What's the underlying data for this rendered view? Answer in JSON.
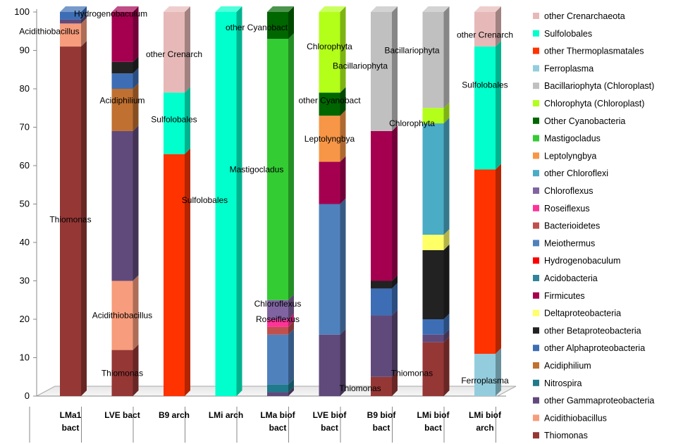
{
  "chart_data": {
    "type": "bar",
    "stacked": true,
    "ylim": [
      0,
      100
    ],
    "yticks": [
      "0",
      "10",
      "20",
      "30",
      "40",
      "50",
      "60",
      "70",
      "80",
      "90",
      "100"
    ],
    "grid": false,
    "legend_position": "right",
    "categories": [
      [
        "LMa1",
        "bact"
      ],
      [
        "LVE bact"
      ],
      [
        "B9 arch"
      ],
      [
        "LMi arch"
      ],
      [
        "LMa biof",
        "bact"
      ],
      [
        "LVE biof",
        "bact"
      ],
      [
        "B9 biof",
        "bact"
      ],
      [
        "LMi biof",
        "bact"
      ],
      [
        "LMi biof",
        "arch"
      ]
    ],
    "legend": [
      {
        "name": "other Crenarchaeota",
        "color": "#e6b9b8"
      },
      {
        "name": "Sulfolobales",
        "color": "#00ffcc"
      },
      {
        "name": "other Thermoplasmatales",
        "color": "#ff3300"
      },
      {
        "name": "Ferroplasma",
        "color": "#93cddd"
      },
      {
        "name": "Bacillariophyta (Chloroplast)",
        "color": "#c0c0c0"
      },
      {
        "name": "Chlorophyta (Chloroplast)",
        "color": "#b3ff1a"
      },
      {
        "name": "Other Cyanobacteria",
        "color": "#006600"
      },
      {
        "name": "Mastigocladus",
        "color": "#33cc33"
      },
      {
        "name": "Leptolyngbya",
        "color": "#f79646"
      },
      {
        "name": "other Chloroflexi",
        "color": "#4bacc6"
      },
      {
        "name": "Chloroflexus",
        "color": "#8064a2"
      },
      {
        "name": "Roseiflexus",
        "color": "#ff3399"
      },
      {
        "name": "Bacterioidetes",
        "color": "#c0504d"
      },
      {
        "name": "Meiothermus",
        "color": "#4f81bd"
      },
      {
        "name": "Hydrogenobaculum",
        "color": "#ff0000"
      },
      {
        "name": "Acidobacteria",
        "color": "#31849b"
      },
      {
        "name": "Firmicutes",
        "color": "#a50050"
      },
      {
        "name": "Deltaproteobacteria",
        "color": "#ffff66"
      },
      {
        "name": "other Betaproteobacteria",
        "color": "#222222"
      },
      {
        "name": "other Alphaproteobacteria",
        "color": "#3d6eb5"
      },
      {
        "name": "Acidiphilium",
        "color": "#c07030"
      },
      {
        "name": "Nitrospira",
        "color": "#1f7a8c"
      },
      {
        "name": "other Gammaproteobacteria",
        "color": "#604a7b"
      },
      {
        "name": "Acidithiobacillus",
        "color": "#f79c7c"
      },
      {
        "name": "Thiomonas",
        "color": "#953735"
      }
    ],
    "stacks": [
      [
        {
          "taxon": "Thiomonas",
          "value": 91
        },
        {
          "taxon": "Acidithiobacillus",
          "value": 6
        },
        {
          "taxon": "other Gammaproteobacteria",
          "value": 1
        },
        {
          "taxon": "other Alphaproteobacteria",
          "value": 2
        }
      ],
      [
        {
          "taxon": "Thiomonas",
          "value": 12
        },
        {
          "taxon": "Acidithiobacillus",
          "value": 18
        },
        {
          "taxon": "other Gammaproteobacteria",
          "value": 39
        },
        {
          "taxon": "Acidiphilium",
          "value": 11
        },
        {
          "taxon": "other Alphaproteobacteria",
          "value": 4
        },
        {
          "taxon": "other Betaproteobacteria",
          "value": 3
        },
        {
          "taxon": "Firmicutes",
          "value": 13
        }
      ],
      [
        {
          "taxon": "other Thermoplasmatales",
          "value": 63
        },
        {
          "taxon": "Sulfolobales",
          "value": 16
        },
        {
          "taxon": "other Crenarchaeota",
          "value": 21
        }
      ],
      [
        {
          "taxon": "Sulfolobales",
          "value": 100
        }
      ],
      [
        {
          "taxon": "other Gammaproteobacteria",
          "value": 1
        },
        {
          "taxon": "Nitrospira",
          "value": 2
        },
        {
          "taxon": "Meiothermus",
          "value": 13
        },
        {
          "taxon": "Bacterioidetes",
          "value": 2
        },
        {
          "taxon": "Roseiflexus",
          "value": 2
        },
        {
          "taxon": "Chloroflexus",
          "value": 5
        },
        {
          "taxon": "Mastigocladus",
          "value": 68
        },
        {
          "taxon": "Other Cyanobacteria",
          "value": 7
        }
      ],
      [
        {
          "taxon": "other Gammaproteobacteria",
          "value": 16
        },
        {
          "taxon": "Meiothermus",
          "value": 34
        },
        {
          "taxon": "Firmicutes",
          "value": 11
        },
        {
          "taxon": "Leptolyngbya",
          "value": 12
        },
        {
          "taxon": "Other Cyanobacteria",
          "value": 6
        },
        {
          "taxon": "Chlorophyta (Chloroplast)",
          "value": 21
        }
      ],
      [
        {
          "taxon": "Thiomonas",
          "value": 5
        },
        {
          "taxon": "other Gammaproteobacteria",
          "value": 16
        },
        {
          "taxon": "other Alphaproteobacteria",
          "value": 7
        },
        {
          "taxon": "other Betaproteobacteria",
          "value": 2
        },
        {
          "taxon": "Firmicutes",
          "value": 39
        },
        {
          "taxon": "Bacillariophyta (Chloroplast)",
          "value": 31
        }
      ],
      [
        {
          "taxon": "Thiomonas",
          "value": 14
        },
        {
          "taxon": "other Gammaproteobacteria",
          "value": 2
        },
        {
          "taxon": "other Alphaproteobacteria",
          "value": 4
        },
        {
          "taxon": "other Betaproteobacteria",
          "value": 18
        },
        {
          "taxon": "Deltaproteobacteria",
          "value": 4
        },
        {
          "taxon": "other Chloroflexi",
          "value": 29
        },
        {
          "taxon": "Chlorophyta (Chloroplast)",
          "value": 4
        },
        {
          "taxon": "Bacillariophyta (Chloroplast)",
          "value": 25
        }
      ],
      [
        {
          "taxon": "Ferroplasma",
          "value": 11
        },
        {
          "taxon": "other Thermoplasmatales",
          "value": 48
        },
        {
          "taxon": "Sulfolobales",
          "value": 32
        },
        {
          "taxon": "other Crenarchaeota",
          "value": 9
        }
      ]
    ],
    "annotations": [
      {
        "bar": 0,
        "text": "Hydrogenobaculum",
        "y": 99.5,
        "side": "right"
      },
      {
        "bar": 0,
        "text": "Acidithiobacillus",
        "y": 95,
        "side": "left"
      },
      {
        "bar": 0,
        "text": "Thiomonas",
        "y": 46,
        "side": "center"
      },
      {
        "bar": 1,
        "text": "Acidiphilium",
        "y": 77,
        "side": "center"
      },
      {
        "bar": 1,
        "text": "Acidithiobacillus",
        "y": 21,
        "side": "center"
      },
      {
        "bar": 1,
        "text": "Thiomonas",
        "y": 6,
        "side": "center"
      },
      {
        "bar": 2,
        "text": "other Crenarch",
        "y": 89,
        "side": "center"
      },
      {
        "bar": 2,
        "text": "Sulfolobales",
        "y": 72,
        "side": "center"
      },
      {
        "bar": 3,
        "text": "Sulfolobales",
        "y": 51,
        "side": "left"
      },
      {
        "bar": 4,
        "text": "other Cyanobact",
        "y": 96,
        "side": "left"
      },
      {
        "bar": 4,
        "text": "Mastigocladus",
        "y": 59,
        "side": "left"
      },
      {
        "bar": 4,
        "text": "Chloroflexus",
        "y": 24,
        "side": "center"
      },
      {
        "bar": 4,
        "text": "Roseiflexus",
        "y": 20,
        "side": "center"
      },
      {
        "bar": 5,
        "text": "Chlorophyta",
        "y": 91,
        "side": "center"
      },
      {
        "bar": 5,
        "text": "other Cyanobact",
        "y": 77,
        "side": "center"
      },
      {
        "bar": 5,
        "text": "Leptolyngbya",
        "y": 67,
        "side": "center"
      },
      {
        "bar": 6,
        "text": "Bacillariophyta",
        "y": 86,
        "side": "left"
      },
      {
        "bar": 6,
        "text": "Thiomonas",
        "y": 2,
        "side": "left"
      },
      {
        "bar": 7,
        "text": "Bacillariophyta",
        "y": 90,
        "side": "left"
      },
      {
        "bar": 7,
        "text": "Chlorophyta",
        "y": 71,
        "side": "left"
      },
      {
        "bar": 7,
        "text": "Thiomonas",
        "y": 6,
        "side": "left"
      },
      {
        "bar": 8,
        "text": "other Crenarch",
        "y": 94,
        "side": "center"
      },
      {
        "bar": 8,
        "text": "Sulfolobales",
        "y": 81,
        "side": "center"
      },
      {
        "bar": 8,
        "text": "Ferroplasma",
        "y": 4,
        "side": "center"
      }
    ]
  }
}
